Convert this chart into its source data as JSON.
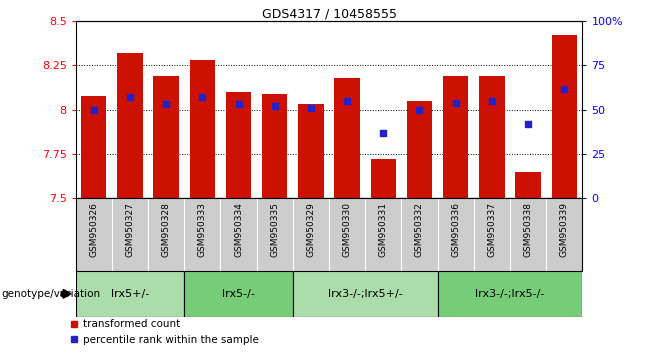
{
  "title": "GDS4317 / 10458555",
  "samples": [
    "GSM950326",
    "GSM950327",
    "GSM950328",
    "GSM950333",
    "GSM950334",
    "GSM950335",
    "GSM950329",
    "GSM950330",
    "GSM950331",
    "GSM950332",
    "GSM950336",
    "GSM950337",
    "GSM950338",
    "GSM950339"
  ],
  "bar_tops": [
    8.08,
    8.32,
    8.19,
    8.28,
    8.1,
    8.09,
    8.03,
    8.18,
    7.72,
    8.05,
    8.19,
    8.19,
    7.65,
    8.42
  ],
  "percentile": [
    50,
    57,
    53,
    57,
    53,
    52,
    51,
    55,
    37,
    50,
    54,
    55,
    42,
    62
  ],
  "groups": [
    {
      "label": "lrx5+/-",
      "start": 0,
      "end": 3,
      "color": "#aaddaa"
    },
    {
      "label": "lrx5-/-",
      "start": 3,
      "end": 6,
      "color": "#77cc77"
    },
    {
      "label": "lrx3-/-;lrx5+/-",
      "start": 6,
      "end": 10,
      "color": "#aaddaa"
    },
    {
      "label": "lrx3-/-;lrx5-/-",
      "start": 10,
      "end": 14,
      "color": "#77cc77"
    }
  ],
  "bar_bottom": 7.5,
  "ylim_left": [
    7.5,
    8.5
  ],
  "ylim_right": [
    0,
    100
  ],
  "yticks_left": [
    7.5,
    7.75,
    8.0,
    8.25,
    8.5
  ],
  "ytick_labels_left": [
    "7.5",
    "7.75",
    "8",
    "8.25",
    "8.5"
  ],
  "yticks_right": [
    0,
    25,
    50,
    75,
    100
  ],
  "ytick_labels_right": [
    "0",
    "25",
    "50",
    "75",
    "100%"
  ],
  "hgrid_values": [
    7.75,
    8.0,
    8.25
  ],
  "bar_color": "#cc1100",
  "dot_color": "#2222cc",
  "bar_width": 0.7,
  "background_color": "#ffffff",
  "gray_label_color": "#cccccc",
  "legend_red": "transformed count",
  "legend_blue": "percentile rank within the sample",
  "group_label": "genotype/variation"
}
